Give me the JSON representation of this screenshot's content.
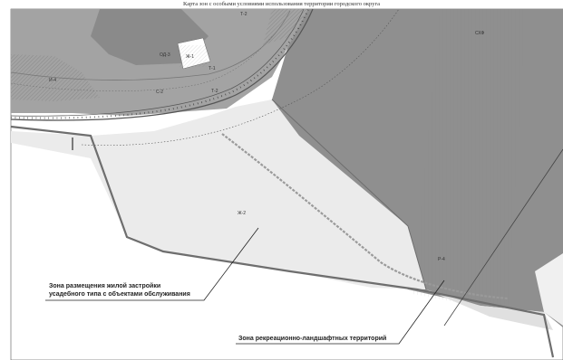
{
  "title": "Карта зон с особыми условиями использования территории городского округа",
  "zone_labels": {
    "zone_ob": "ОД-3",
    "zone_zh1": "Ж-1",
    "zone_t1": "Т-1",
    "zone_t2_top": "Т-2",
    "zone_t2": "Т-2",
    "zone_s2": "С-2",
    "zone_i4": "И-4",
    "zone_zh2": "Ж-2",
    "zone_r4": "Р-4",
    "zone_sh": "СХФ"
  },
  "callouts": {
    "residential": [
      "Зона размещения жилой застройки",
      "усадебного типа с объектами обслуживания"
    ],
    "recreation": "Зона рекреационно-ландшафтных территорий"
  },
  "colors": {
    "dark_zone": "#8f8f8f",
    "mid_zone": "#a9a9a9",
    "light_zone": "#ebebeb",
    "road": "#6e6e6e"
  }
}
